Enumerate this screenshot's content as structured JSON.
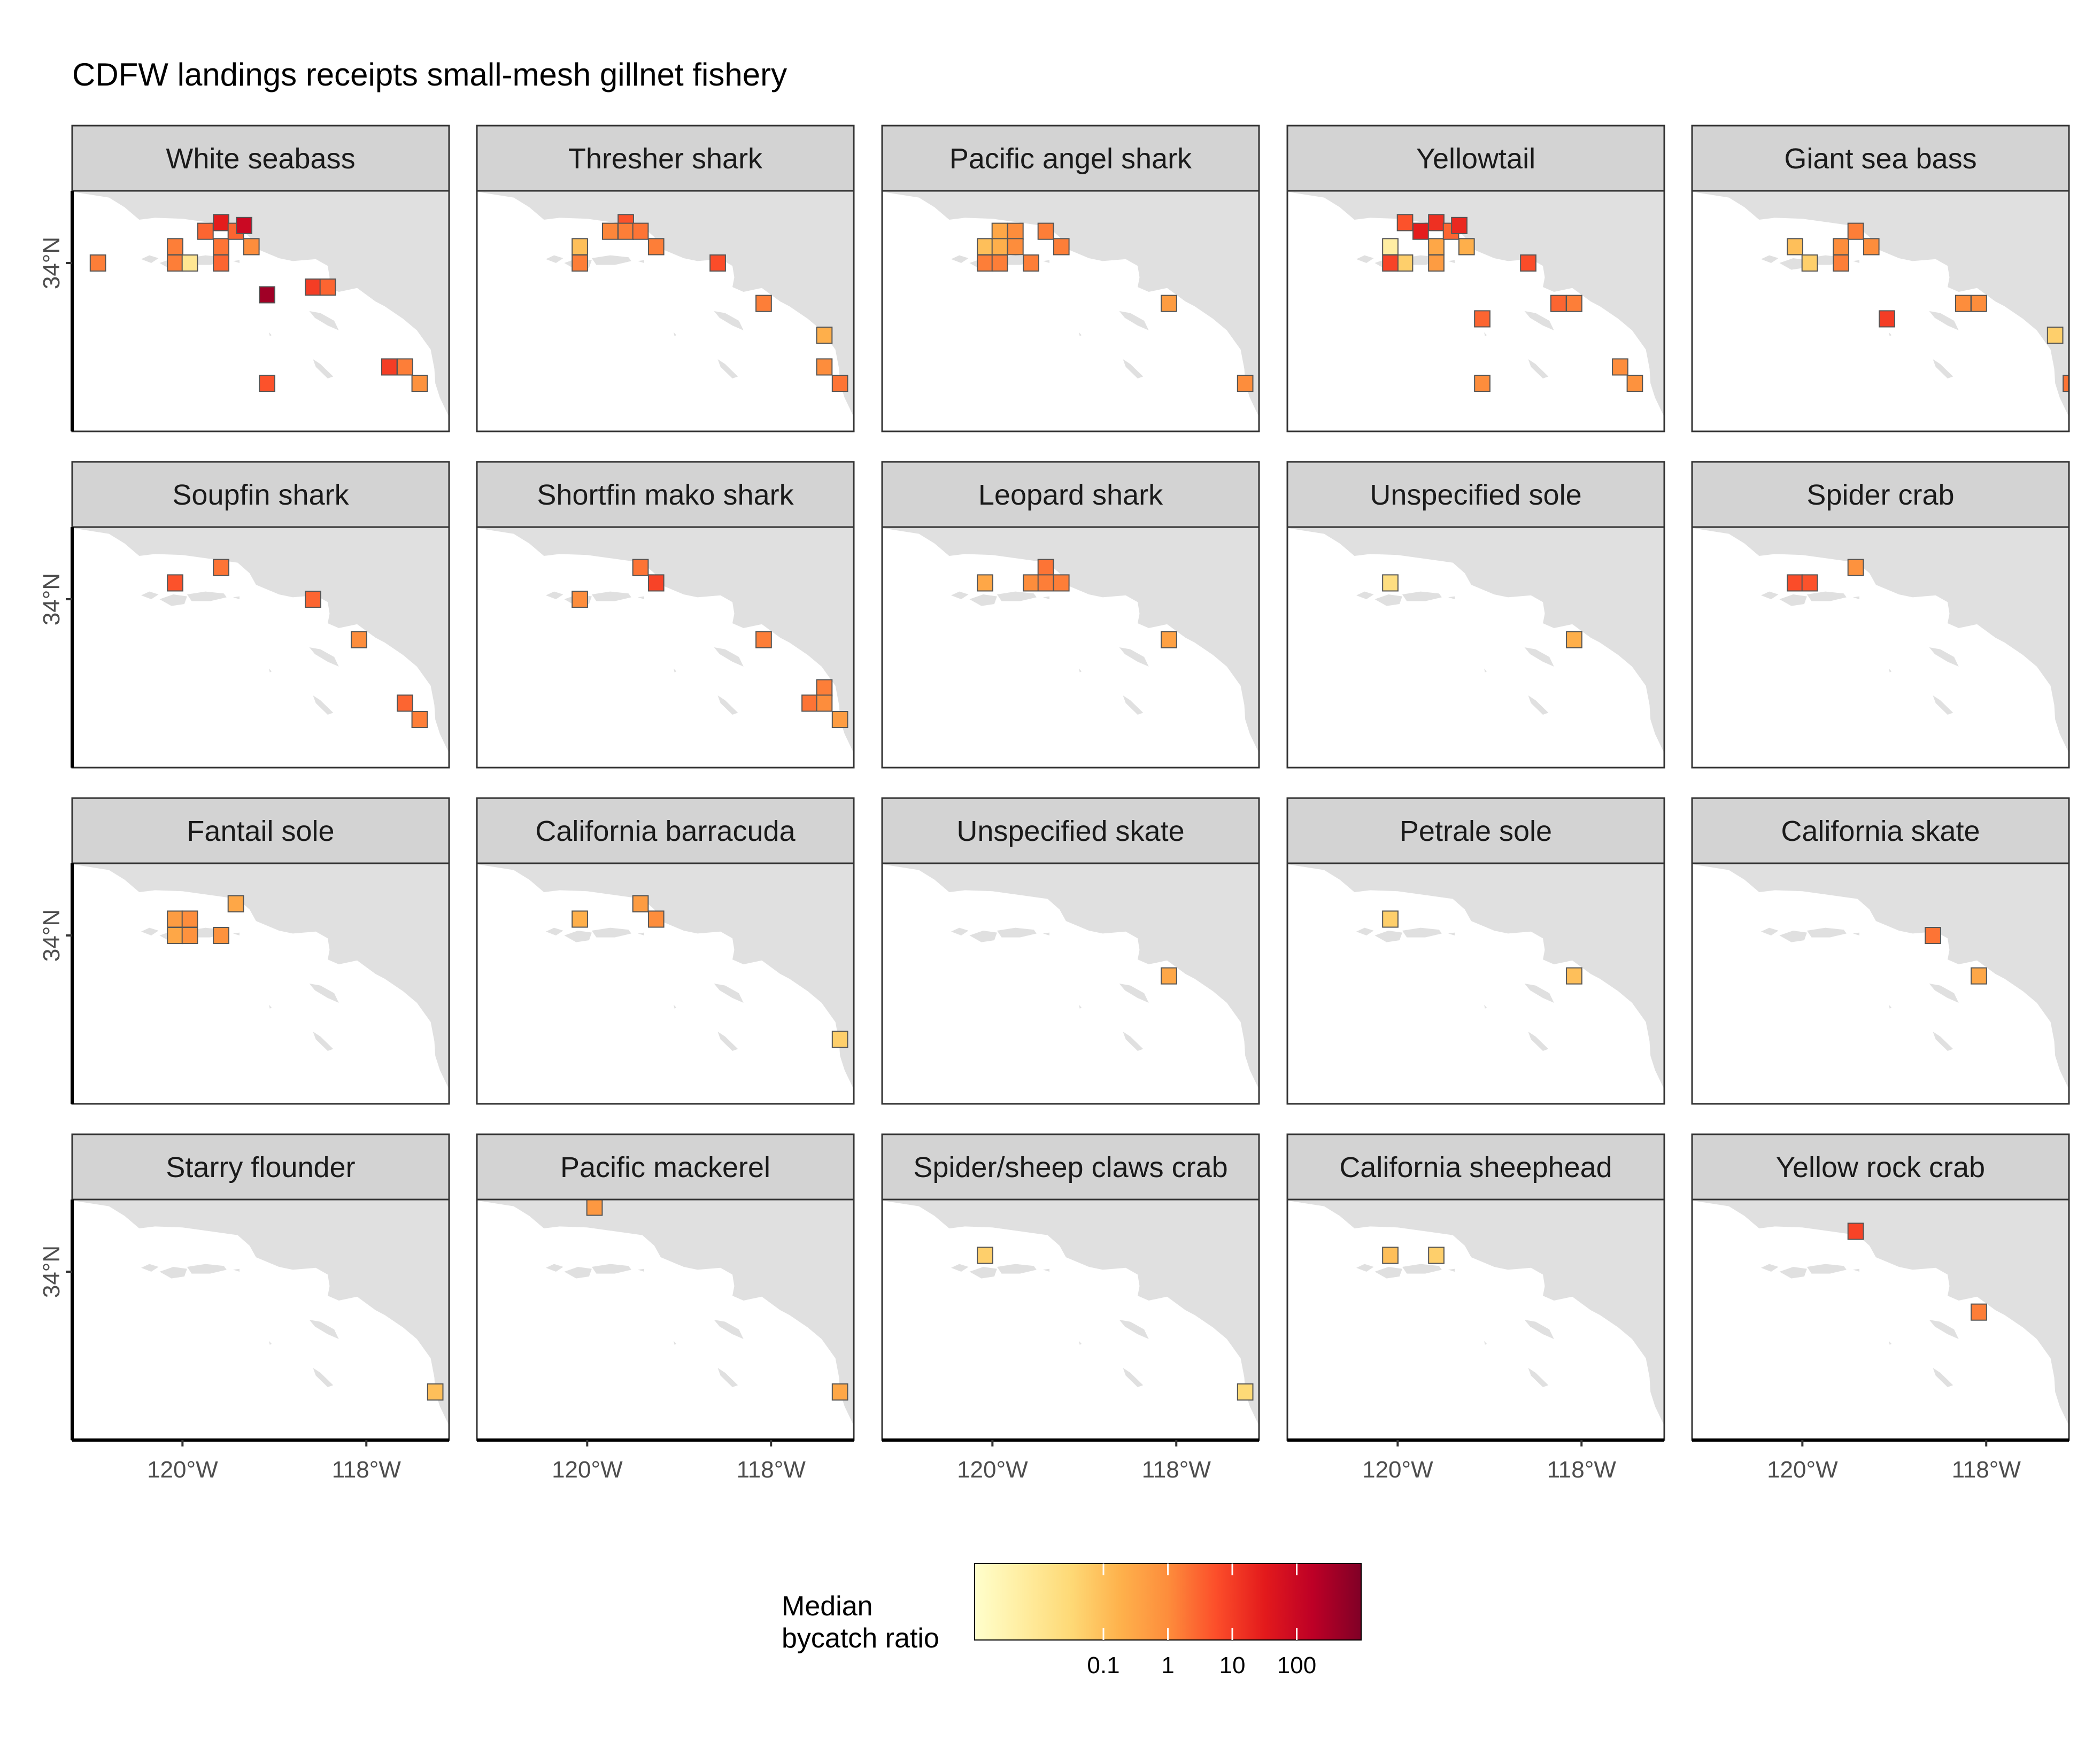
{
  "title": "CDFW landings receipts small-mesh gillnet fishery",
  "colors": {
    "land": "#e0e0e0",
    "strip_fill": "#d3d3d3",
    "panel_border": "#333333",
    "axis_text": "#4d4d4d",
    "cell_outline": "#555555",
    "colorscale": [
      "#ffffcc",
      "#ffeda0",
      "#fed976",
      "#feb24c",
      "#fd8d3c",
      "#fc4e2a",
      "#e31a1c",
      "#bd0026",
      "#800026"
    ]
  },
  "chart_data": {
    "type": "heatmap",
    "facets": 20,
    "facet_columns": 5,
    "xlim": [
      -121.2,
      -117.1
    ],
    "ylim": [
      32.25,
      34.75
    ],
    "x_ticks": [
      {
        "value": -120,
        "label": "120°W"
      },
      {
        "value": -118,
        "label": "118°W"
      }
    ],
    "y_ticks": [
      {
        "value": 34,
        "label": "34°N"
      }
    ],
    "cell_size_deg": 0.167,
    "color_scale": {
      "type": "log",
      "min": 0.001,
      "max": 1000,
      "legend_title": "Median\nbycatch ratio",
      "ticks": [
        {
          "value": 0.1,
          "label": "0.1"
        },
        {
          "value": 1,
          "label": "1"
        },
        {
          "value": 10,
          "label": "10"
        },
        {
          "value": 100,
          "label": "100"
        }
      ]
    },
    "panels": [
      {
        "species": "White seabass",
        "cells": [
          [
            -120.92,
            34.0,
            1.5
          ],
          [
            -120.08,
            34.17,
            1.5
          ],
          [
            -120.08,
            34.0,
            1.5
          ],
          [
            -119.92,
            34.0,
            0.01
          ],
          [
            -119.75,
            34.33,
            3
          ],
          [
            -119.58,
            34.42,
            30
          ],
          [
            -119.58,
            34.17,
            2
          ],
          [
            -119.58,
            34.0,
            3
          ],
          [
            -119.42,
            34.33,
            3
          ],
          [
            -119.33,
            34.39,
            100
          ],
          [
            -119.25,
            34.17,
            1
          ],
          [
            -119.08,
            33.67,
            400
          ],
          [
            -118.58,
            33.75,
            10
          ],
          [
            -118.42,
            33.75,
            3
          ],
          [
            -117.75,
            32.92,
            10
          ],
          [
            -117.58,
            32.92,
            1.5
          ],
          [
            -117.42,
            32.75,
            0.8
          ],
          [
            -119.08,
            32.75,
            5
          ]
        ]
      },
      {
        "species": "Thresher shark",
        "cells": [
          [
            -120.08,
            34.17,
            0.1
          ],
          [
            -120.08,
            34.0,
            1.5
          ],
          [
            -119.75,
            34.33,
            1.2
          ],
          [
            -119.58,
            34.42,
            5
          ],
          [
            -119.58,
            34.33,
            1.5
          ],
          [
            -119.42,
            34.33,
            2
          ],
          [
            -119.25,
            34.17,
            1.5
          ],
          [
            -118.58,
            34.0,
            6
          ],
          [
            -118.08,
            33.58,
            1.5
          ],
          [
            -117.42,
            33.25,
            0.2
          ],
          [
            -117.42,
            32.92,
            1
          ],
          [
            -117.25,
            32.75,
            2
          ]
        ]
      },
      {
        "species": "Pacific angel shark",
        "cells": [
          [
            -120.08,
            34.17,
            0.1
          ],
          [
            -119.92,
            34.33,
            0.3
          ],
          [
            -119.92,
            34.17,
            0.2
          ],
          [
            -119.75,
            34.33,
            1
          ],
          [
            -119.75,
            34.17,
            1
          ],
          [
            -120.08,
            34.0,
            1.5
          ],
          [
            -119.92,
            34.0,
            1.5
          ],
          [
            -119.58,
            34.0,
            1.5
          ],
          [
            -119.42,
            34.33,
            1.5
          ],
          [
            -119.25,
            34.17,
            1.5
          ],
          [
            -118.08,
            33.58,
            0.5
          ],
          [
            -117.25,
            32.75,
            1
          ]
        ]
      },
      {
        "species": "Yellowtail",
        "cells": [
          [
            -120.08,
            34.17,
            0.005
          ],
          [
            -119.92,
            34.0,
            0.05
          ],
          [
            -120.08,
            34.0,
            8
          ],
          [
            -119.92,
            34.42,
            5
          ],
          [
            -119.75,
            34.33,
            30
          ],
          [
            -119.58,
            34.42,
            15
          ],
          [
            -119.58,
            34.17,
            0.3
          ],
          [
            -119.58,
            34.0,
            0.5
          ],
          [
            -119.42,
            34.33,
            3
          ],
          [
            -119.33,
            34.39,
            20
          ],
          [
            -119.25,
            34.17,
            0.2
          ],
          [
            -118.58,
            34.0,
            6
          ],
          [
            -118.25,
            33.58,
            3
          ],
          [
            -118.08,
            33.58,
            1.5
          ],
          [
            -119.08,
            33.42,
            3
          ],
          [
            -117.58,
            32.92,
            1
          ],
          [
            -117.42,
            32.75,
            0.8
          ],
          [
            -119.08,
            32.75,
            1
          ]
        ]
      },
      {
        "species": "Giant sea bass",
        "cells": [
          [
            -120.08,
            34.17,
            0.1
          ],
          [
            -119.92,
            34.0,
            0.05
          ],
          [
            -119.58,
            34.17,
            1
          ],
          [
            -119.58,
            34.0,
            1.5
          ],
          [
            -119.42,
            34.33,
            1.5
          ],
          [
            -119.25,
            34.17,
            1
          ],
          [
            -119.08,
            33.42,
            10
          ],
          [
            -118.25,
            33.58,
            1
          ],
          [
            -118.08,
            33.58,
            1
          ],
          [
            -117.25,
            33.25,
            0.05
          ],
          [
            -117.08,
            32.75,
            2
          ]
        ]
      },
      {
        "species": "Soupfin shark",
        "cells": [
          [
            -120.08,
            34.17,
            5
          ],
          [
            -119.58,
            34.33,
            2
          ],
          [
            -118.58,
            34.0,
            3
          ],
          [
            -118.08,
            33.58,
            1
          ],
          [
            -117.58,
            32.92,
            3
          ],
          [
            -117.42,
            32.75,
            1.5
          ]
        ]
      },
      {
        "species": "Shortfin mako shark",
        "cells": [
          [
            -120.08,
            34.0,
            1
          ],
          [
            -119.42,
            34.33,
            2
          ],
          [
            -119.25,
            34.17,
            8
          ],
          [
            -118.08,
            33.58,
            1.5
          ],
          [
            -117.42,
            33.08,
            1.5
          ],
          [
            -117.58,
            32.92,
            2
          ],
          [
            -117.42,
            32.92,
            1
          ],
          [
            -117.25,
            32.75,
            0.5
          ]
        ]
      },
      {
        "species": "Leopard shark",
        "cells": [
          [
            -120.08,
            34.17,
            0.3
          ],
          [
            -119.58,
            34.17,
            1
          ],
          [
            -119.42,
            34.33,
            2
          ],
          [
            -119.42,
            34.17,
            1.5
          ],
          [
            -119.25,
            34.17,
            1.5
          ],
          [
            -118.08,
            33.58,
            0.4
          ]
        ]
      },
      {
        "species": "Unspecified sole",
        "cells": [
          [
            -120.08,
            34.17,
            0.02
          ],
          [
            -118.08,
            33.58,
            0.2
          ]
        ]
      },
      {
        "species": "Spider crab",
        "cells": [
          [
            -120.08,
            34.17,
            6
          ],
          [
            -119.92,
            34.17,
            5
          ],
          [
            -119.42,
            34.33,
            0.8
          ]
        ]
      },
      {
        "species": "Fantail sole",
        "cells": [
          [
            -119.42,
            34.33,
            0.3
          ],
          [
            -120.08,
            34.17,
            0.5
          ],
          [
            -119.92,
            34.17,
            1
          ],
          [
            -120.08,
            34.0,
            0.3
          ],
          [
            -119.92,
            34.0,
            0.8
          ],
          [
            -119.58,
            34.0,
            0.8
          ]
        ]
      },
      {
        "species": "California barracuda",
        "cells": [
          [
            -120.08,
            34.17,
            0.2
          ],
          [
            -119.42,
            34.33,
            0.5
          ],
          [
            -119.25,
            34.17,
            1
          ],
          [
            -117.25,
            32.92,
            0.05
          ]
        ]
      },
      {
        "species": "Unspecified skate",
        "cells": [
          [
            -118.08,
            33.58,
            0.3
          ]
        ]
      },
      {
        "species": "Petrale sole",
        "cells": [
          [
            -120.08,
            34.17,
            0.05
          ],
          [
            -118.08,
            33.58,
            0.1
          ]
        ]
      },
      {
        "species": "California skate",
        "cells": [
          [
            -118.58,
            34.0,
            2
          ],
          [
            -118.08,
            33.58,
            0.3
          ]
        ]
      },
      {
        "species": "Starry flounder",
        "cells": [
          [
            -117.25,
            32.75,
            0.1
          ]
        ]
      },
      {
        "species": "Pacific mackerel",
        "cells": [
          [
            -119.92,
            34.67,
            0.6
          ],
          [
            -117.25,
            32.75,
            0.3
          ]
        ]
      },
      {
        "species": "Spider/sheep claws crab",
        "cells": [
          [
            -120.08,
            34.17,
            0.05
          ],
          [
            -117.25,
            32.75,
            0.03
          ]
        ]
      },
      {
        "species": "California sheephead",
        "cells": [
          [
            -120.08,
            34.17,
            0.1
          ],
          [
            -119.58,
            34.17,
            0.05
          ]
        ]
      },
      {
        "species": "Yellow rock crab",
        "cells": [
          [
            -119.42,
            34.42,
            8
          ],
          [
            -118.08,
            33.58,
            1.5
          ]
        ]
      }
    ]
  }
}
